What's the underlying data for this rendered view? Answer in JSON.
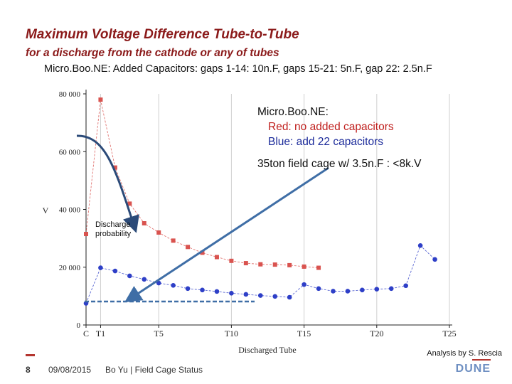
{
  "slide": {
    "title": "Maximum Voltage Difference Tube-to-Tube",
    "subtitle": "for a discharge from the cathode or any of tubes",
    "description": "Micro.Boo.NE: Added Capacitors: gaps 1-14: 10n.F, gaps 15-21: 5n.F, gap 22: 2.5n.F",
    "legend": {
      "heading": "Micro.Boo.NE:",
      "red": "Red: no added capacitors",
      "blue": "Blue: add 22 capacitors",
      "note": "35ton field cage w/ 3.5n.F : <8k.V"
    },
    "discharge_label_1": "Discharge",
    "discharge_label_2": "probability",
    "analysis": "Analysis by S. Rescia",
    "page_number": "8",
    "date": "09/08/2015",
    "footer_text": "Bo Yu | Field Cage Status",
    "logo": "DUNE",
    "colors": {
      "red": "#d9534f",
      "blue": "#2e3fc7",
      "title": "#8b1a1a",
      "arrow": "#3f6ea6"
    }
  },
  "chart_data": {
    "type": "scatter",
    "title": "",
    "xlabel": "Discharged Tube",
    "ylabel": "V",
    "x_tick_labels": [
      "C",
      "T1",
      "T5",
      "T10",
      "T15",
      "T20",
      "T25"
    ],
    "x_tick_values": [
      0,
      1,
      5,
      10,
      15,
      20,
      25
    ],
    "y_tick_values": [
      0,
      20000,
      40000,
      60000,
      80000
    ],
    "y_tick_labels": [
      "0",
      "20 000",
      "40 000",
      "60 000",
      "80 000"
    ],
    "xlim": [
      0,
      25
    ],
    "ylim": [
      0,
      80000
    ],
    "series": [
      {
        "name": "no added capacitors",
        "color": "red",
        "connected": true,
        "x": [
          0,
          1,
          2,
          3,
          4,
          5,
          6,
          7,
          8,
          9,
          10,
          11,
          12,
          13,
          14,
          15,
          16
        ],
        "y": [
          31500,
          78000,
          54500,
          42000,
          35200,
          32000,
          29200,
          27000,
          25000,
          23500,
          22200,
          21400,
          21000,
          20900,
          20700,
          20200,
          19800
        ]
      },
      {
        "name": "add 22 capacitors",
        "color": "blue",
        "connected": true,
        "x": [
          0,
          1,
          2,
          3,
          4,
          5,
          6,
          7,
          8,
          9,
          10,
          11,
          12,
          13,
          14,
          15,
          16,
          17,
          18,
          19,
          20,
          21,
          22,
          23,
          24
        ],
        "y": [
          7500,
          19800,
          18700,
          17000,
          15800,
          14500,
          13700,
          12600,
          12100,
          11600,
          11000,
          10600,
          10200,
          9900,
          9600,
          14000,
          12600,
          11700,
          11700,
          12100,
          12400,
          12600,
          13600,
          27500,
          22700
        ]
      }
    ]
  }
}
